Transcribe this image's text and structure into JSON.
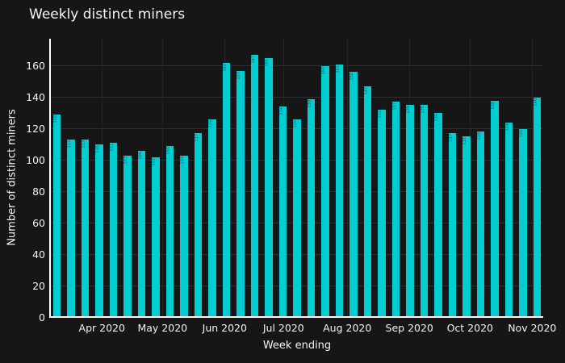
{
  "title": "Weekly distinct miners",
  "chart_data": {
    "type": "bar",
    "title": "Weekly distinct miners",
    "xlabel": "Week ending",
    "ylabel": "Number of distinct miners",
    "values": [
      129,
      113,
      113,
      110,
      111,
      103,
      106,
      102,
      109,
      103,
      117,
      126,
      162,
      157,
      167,
      165,
      134,
      126,
      139,
      160,
      161,
      156,
      147,
      132,
      137,
      135,
      135,
      130,
      117,
      115,
      118,
      138,
      124,
      120,
      140
    ],
    "x_month_ticks": [
      {
        "label": "Apr 2020",
        "pos": 3.2
      },
      {
        "label": "May 2020",
        "pos": 7.49
      },
      {
        "label": "Jun 2020",
        "pos": 11.89
      },
      {
        "label": "Jul 2020",
        "pos": 16.06
      },
      {
        "label": "Aug 2020",
        "pos": 20.57
      },
      {
        "label": "Sep 2020",
        "pos": 24.97
      },
      {
        "label": "Oct 2020",
        "pos": 29.26
      },
      {
        "label": "Nov 2020",
        "pos": 33.66
      }
    ],
    "y_ticks": [
      0,
      20,
      40,
      60,
      80,
      100,
      120,
      140,
      160
    ],
    "ylim": [
      0,
      177
    ],
    "grid": true,
    "legend": "none",
    "bar_value_labels": "tiny-rotated-inside-top",
    "colors": {
      "bar": "#00ced1",
      "background": "#161616",
      "axis_line": "#ffffff",
      "text": "#f2f2f2",
      "grid_horizontal": "#2c3035",
      "grid_vertical": "#262626",
      "bar_label": "rgba(0,0,0,0.5)"
    }
  }
}
